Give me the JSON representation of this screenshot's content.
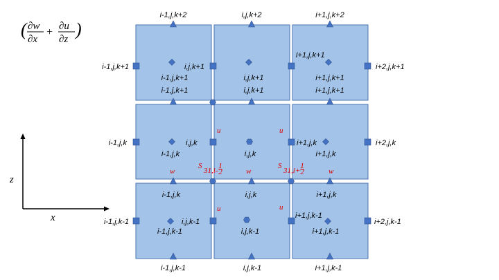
{
  "formula": {
    "open": "(",
    "close": ")",
    "plus": "+",
    "term1": {
      "num": "∂w",
      "den": "∂x"
    },
    "term2": {
      "num": "∂u",
      "den": "∂z"
    }
  },
  "axes": {
    "z_label": "z",
    "x_label": "x"
  },
  "colors": {
    "cell_fill": "#a3c4e8",
    "cell_stroke": "#4a72b0",
    "marker": "#4472c4",
    "marker_stroke": "#2f528f",
    "red_text": "#e00000"
  },
  "top_triangles": [
    "i-1,j,k+2",
    "i,j,k+2",
    "i+1,j,k+2"
  ],
  "row_top": {
    "left_square": "i-1,j,k+1",
    "right_square": "i+2,j,k+1",
    "squares_mid": [
      "i,j,k+1",
      "i+1,j,k+1"
    ],
    "centers": [
      "i-1,j,k+1",
      "i,j,k+1",
      "i+1,j,k+1"
    ],
    "triangles": [
      "i-1,j,k+1",
      "i,j,k+1",
      "i+1,j,k+1"
    ]
  },
  "row_mid": {
    "left_square": "i-1,j,k",
    "right_square": "i+2,j,k",
    "squares_mid": [
      "i,j,k",
      "i+1,j,k"
    ],
    "centers": [
      "i-1,j,k",
      "i,j,k",
      "i+1,j,k"
    ],
    "triangles": [
      "i-1,j,k",
      "i,j,k",
      "i+1,j,k"
    ]
  },
  "row_bot": {
    "left_square": "i-1,j,k-1",
    "right_square": "i+2,j,k-1",
    "squares_mid": [
      "i,j,k-1",
      "i+1,j,k-1"
    ],
    "centers": [
      "i-1,j,k-1",
      "i,j,k-1",
      "i+1,j,k-1"
    ],
    "triangles": [
      "i-1,j,k-1",
      "i,j,k-1",
      "i+1,j,k-1"
    ]
  },
  "stagger": {
    "u": "u",
    "w": "w",
    "s_symbol": "S",
    "s_left_sub": "31,i-",
    "s_right_sub": "31,i+",
    "half_num": "1",
    "half_den": "2"
  }
}
